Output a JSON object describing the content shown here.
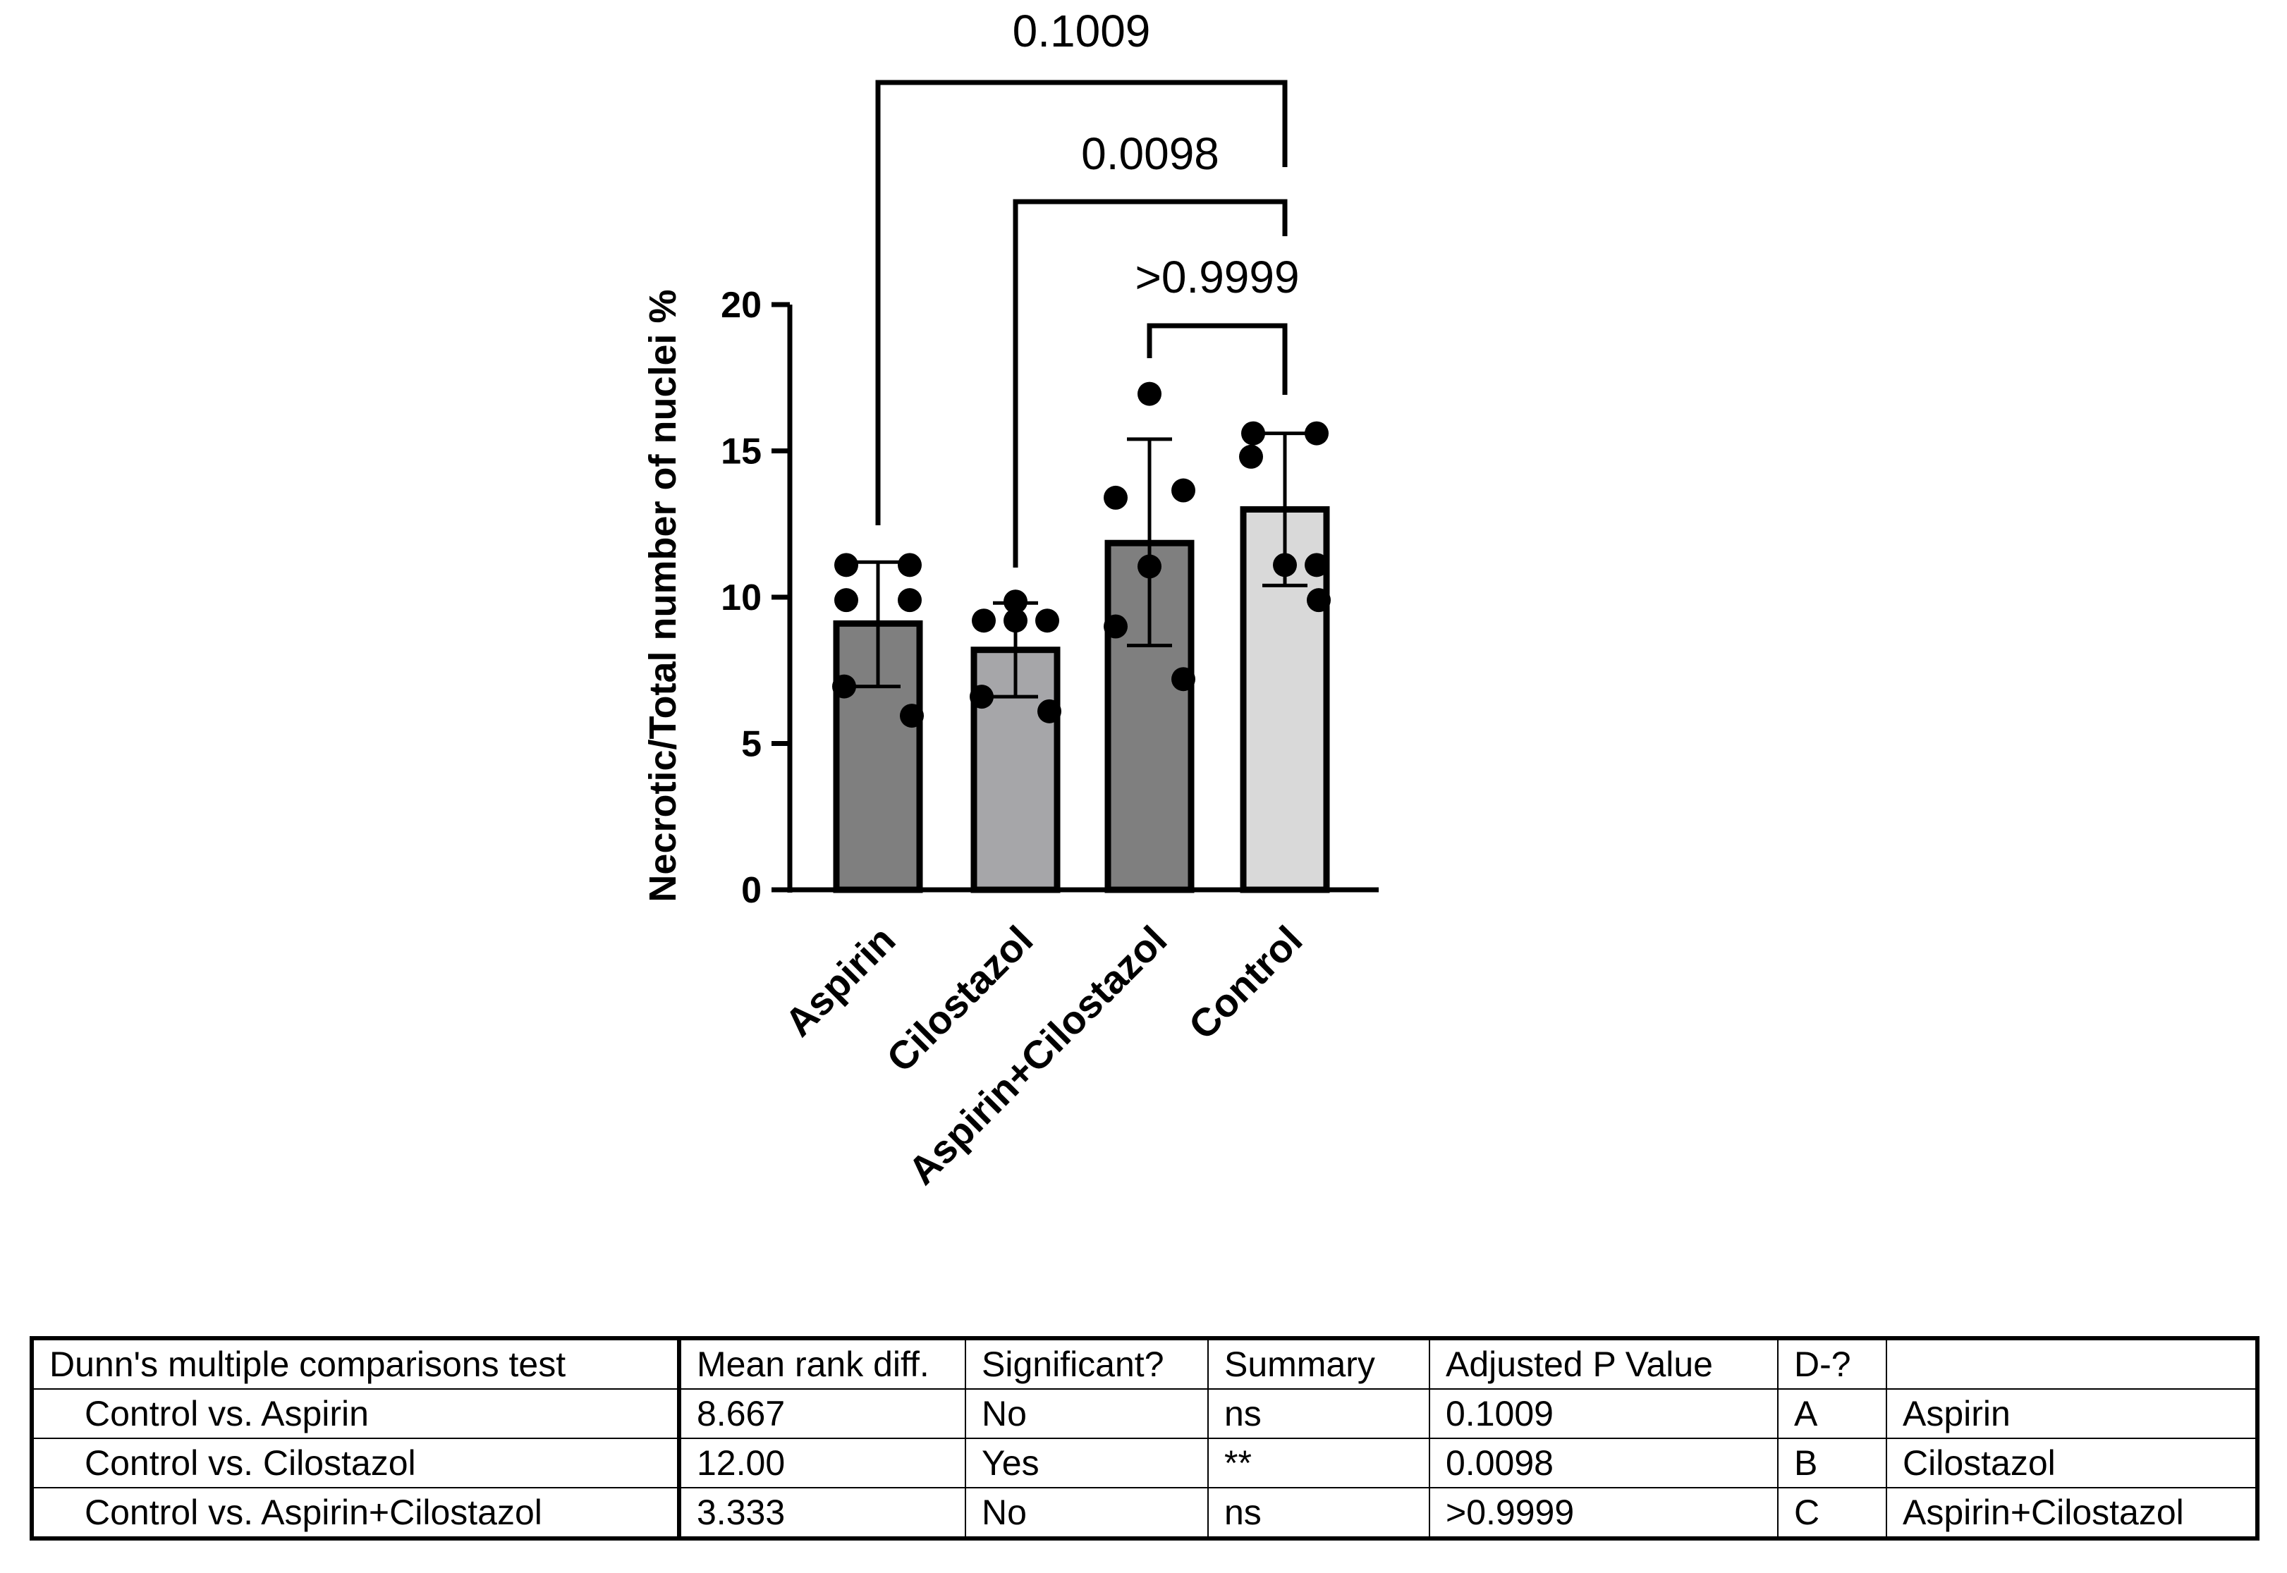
{
  "chart_data": {
    "type": "bar",
    "ylabel": "Necrotic/Total number of nuclei %",
    "xlabel": "",
    "ylim": [
      0,
      20
    ],
    "yticks": [
      0,
      5,
      10,
      15,
      20
    ],
    "categories": [
      "Aspirin",
      "Cilostazol",
      "Aspirin+Cilostazol",
      "Control"
    ],
    "values": [
      9.1,
      8.2,
      11.85,
      13.0
    ],
    "error": [
      {
        "low": 6.95,
        "high": 11.2
      },
      {
        "low": 6.6,
        "high": 9.8
      },
      {
        "low": 8.35,
        "high": 15.4
      },
      {
        "low": 10.4,
        "high": 15.6
      }
    ],
    "colors": [
      "#7f7f7f",
      "#a6a6a9",
      "#7f7f7f",
      "#d9d9d9"
    ],
    "points": [
      [
        11.1,
        11.1,
        9.9,
        9.9,
        6.95,
        5.95
      ],
      [
        9.85,
        9.2,
        9.2,
        9.2,
        6.6,
        6.1
      ],
      [
        16.95,
        13.65,
        13.4,
        11.05,
        9.0,
        7.2
      ],
      [
        15.6,
        15.6,
        14.8,
        11.1,
        11.1,
        9.9
      ]
    ],
    "comparisons": [
      {
        "from": "Aspirin",
        "to": "Control",
        "p": "0.1009"
      },
      {
        "from": "Cilostazol",
        "to": "Control",
        "p": "0.0098"
      },
      {
        "from": "Aspirin+Cilostazol",
        "to": "Control",
        "p": ">0.9999"
      }
    ]
  },
  "table": {
    "headers": [
      "Dunn's multiple comparisons test",
      "Mean rank diff.",
      "Significant?",
      "Summary",
      "Adjusted P Value",
      "D-?",
      ""
    ],
    "rows": [
      [
        "Control vs. Aspirin",
        "8.667",
        "No",
        "ns",
        "0.1009",
        "A",
        "Aspirin"
      ],
      [
        "Control vs. Cilostazol",
        "12.00",
        "Yes",
        "**",
        "0.0098",
        "B",
        "Cilostazol"
      ],
      [
        "Control vs. Aspirin+Cilostazol",
        "3.333",
        "No",
        "ns",
        ">0.9999",
        "C",
        "Aspirin+Cilostazol"
      ]
    ]
  }
}
